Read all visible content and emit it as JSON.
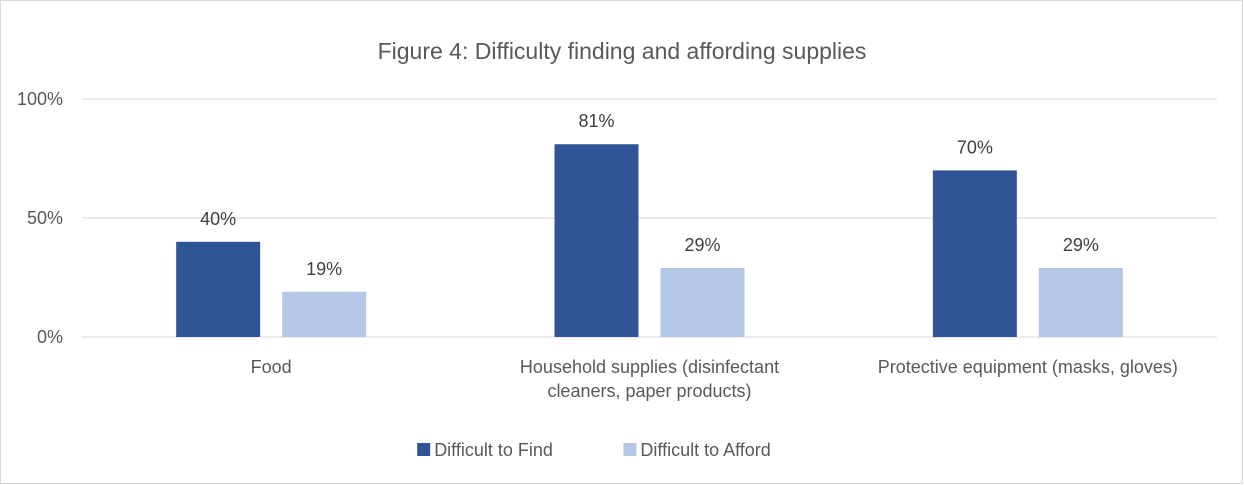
{
  "chart_data": {
    "type": "bar",
    "title": "Figure 4: Difficulty finding and affording supplies",
    "categories": [
      [
        "Food"
      ],
      [
        "Household supplies (disinfectant",
        "cleaners, paper products)"
      ],
      [
        "Protective equipment (masks, gloves)"
      ]
    ],
    "series": [
      {
        "name": "Difficult to Find",
        "color": "#2f5597",
        "values": [
          40,
          81,
          70
        ],
        "labels": [
          "40%",
          "81%",
          "70%"
        ]
      },
      {
        "name": "Difficult to Afford",
        "color": "#b4c7e7",
        "values": [
          19,
          29,
          29
        ],
        "labels": [
          "19%",
          "29%",
          "29%"
        ]
      }
    ],
    "ylim": [
      0,
      100
    ],
    "yticks": [
      0,
      50,
      100
    ],
    "ytick_labels": [
      "0%",
      "50%",
      "100%"
    ],
    "grid": true,
    "legend": "bottom-center"
  }
}
